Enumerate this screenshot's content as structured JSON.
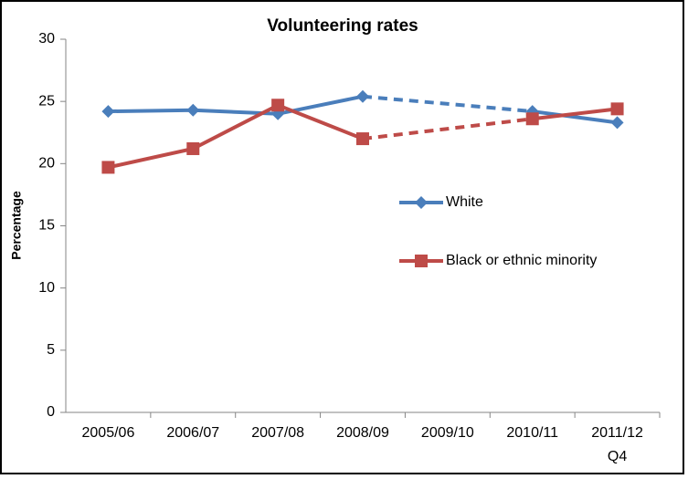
{
  "chart_data": {
    "type": "line",
    "title": "Volunteering rates",
    "y_label": "Percentage",
    "categories": [
      "2005/06",
      "2006/07",
      "2007/08",
      "2008/09",
      "2009/10",
      "2010/11",
      "2011/12\nQ4"
    ],
    "series": [
      {
        "name": "White",
        "color": "#4a7ebb",
        "marker": "diamond",
        "values": [
          24.2,
          24.3,
          24.0,
          25.4,
          null,
          24.2,
          23.3
        ]
      },
      {
        "name": "Black or ethnic minority",
        "color": "#be4b48",
        "marker": "square",
        "values": [
          19.7,
          21.2,
          24.7,
          22.0,
          null,
          23.6,
          24.4
        ]
      }
    ],
    "ylim": [
      0,
      30
    ],
    "yticks": [
      0,
      5,
      10,
      15,
      20,
      25,
      30
    ],
    "grid": false,
    "gap_line": "dashed",
    "legend": "center-right"
  }
}
